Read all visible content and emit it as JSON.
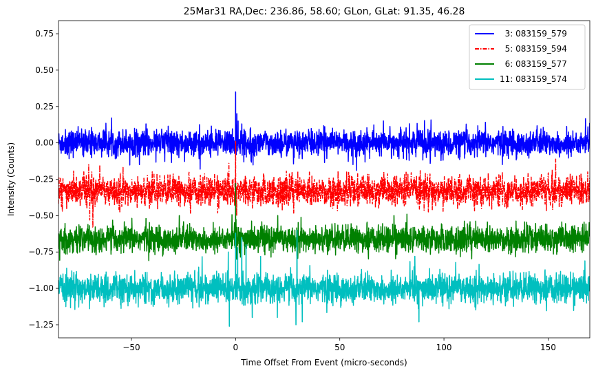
{
  "chart_data": {
    "type": "line",
    "title": "25Mar31 RA,Dec:  236.86,  58.60; GLon, GLat:   91.35,  46.28",
    "xlabel": "Time Offset From Event (micro-seconds)",
    "ylabel": "Intensity (Counts)",
    "xlim": [
      -85,
      170
    ],
    "ylim": [
      -1.34,
      0.84
    ],
    "xticks": [
      -50,
      0,
      50,
      100,
      150
    ],
    "xtick_labels": [
      "−50",
      "0",
      "50",
      "100",
      "150"
    ],
    "yticks": [
      0.75,
      0.5,
      0.25,
      0.0,
      -0.25,
      -0.5,
      -0.75,
      -1.0,
      -1.25
    ],
    "ytick_labels": [
      "0.75",
      "0.50",
      "0.25",
      "0.00",
      "−0.25",
      "−0.50",
      "−0.75",
      "−1.00",
      "−1.25"
    ],
    "legend_position": "top-right",
    "series": [
      {
        "name": "  3: 083159_579",
        "color": "#0000ff",
        "style": "solid",
        "baseline": 0.0,
        "noise": 0.045,
        "spikes": [
          {
            "x": 0,
            "y": 0.35
          },
          {
            "x": 0.6,
            "y": 0.2
          },
          {
            "x": 1.2,
            "y": 0.15
          },
          {
            "x": 3,
            "y": 0.13
          },
          {
            "x": -43,
            "y": 0.13
          },
          {
            "x": -48.5,
            "y": 0.1
          },
          {
            "x": 58,
            "y": -0.19
          },
          {
            "x": 0.3,
            "y": -0.08
          }
        ]
      },
      {
        "name": "  5: 083159_594",
        "color": "#ff0000",
        "style": "dashdot",
        "baseline": -0.33,
        "noise": 0.05,
        "spikes": [
          {
            "x": 0,
            "y": 0.01
          },
          {
            "x": -70,
            "y": -0.53
          },
          {
            "x": -70.5,
            "y": -0.15
          },
          {
            "x": -68.5,
            "y": -0.58
          },
          {
            "x": -69,
            "y": -0.2
          },
          {
            "x": 128,
            "y": -0.2
          },
          {
            "x": 169,
            "y": -0.2
          },
          {
            "x": 0.5,
            "y": -0.5
          },
          {
            "x": -40,
            "y": -0.2
          }
        ]
      },
      {
        "name": "  6: 083159_577",
        "color": "#008000",
        "style": "solid",
        "baseline": -0.66,
        "noise": 0.045,
        "spikes": [
          {
            "x": 0,
            "y": -0.28
          },
          {
            "x": -43,
            "y": -0.52
          },
          {
            "x": -27,
            "y": -0.5
          },
          {
            "x": 0.5,
            "y": -0.8
          },
          {
            "x": -67,
            "y": -0.77
          },
          {
            "x": 76,
            "y": -0.5
          }
        ]
      },
      {
        "name": "11: 083159_574",
        "color": "#00bfbf",
        "style": "solid",
        "baseline": -1.0,
        "noise": 0.05,
        "spikes": [
          {
            "x": 0,
            "y": -0.62
          },
          {
            "x": 1,
            "y": -0.72
          },
          {
            "x": 3,
            "y": -0.65
          },
          {
            "x": 5,
            "y": -0.7
          },
          {
            "x": 29.5,
            "y": -0.6
          },
          {
            "x": 29,
            "y": -1.25
          },
          {
            "x": -3,
            "y": -1.26
          },
          {
            "x": 32,
            "y": -1.23
          },
          {
            "x": 88,
            "y": -1.23
          },
          {
            "x": 86,
            "y": -0.78
          },
          {
            "x": 12,
            "y": -0.78
          },
          {
            "x": -3.5,
            "y": -0.75
          },
          {
            "x": 20,
            "y": -1.2
          },
          {
            "x": 8,
            "y": -1.2
          }
        ]
      }
    ]
  }
}
